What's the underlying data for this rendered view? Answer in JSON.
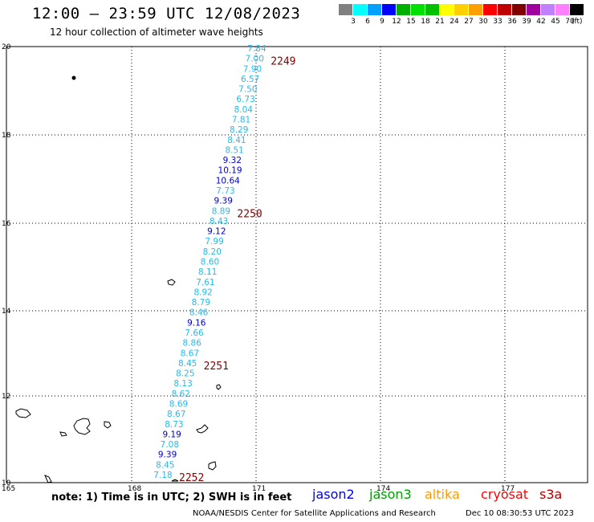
{
  "header": {
    "title": "12:00 – 23:59 UTC 12/08/2023",
    "subtitle": "12 hour collection of altimeter wave heights"
  },
  "colorbar": {
    "colors": [
      "#808080",
      "#00ffff",
      "#00a0ff",
      "#0000ff",
      "#00b000",
      "#00e000",
      "#00c000",
      "#ffff00",
      "#ffd000",
      "#ffa000",
      "#ff0000",
      "#c00000",
      "#800000",
      "#a000a0",
      "#c080ff",
      "#ff80ff",
      "#000000"
    ],
    "ticks": [
      "3",
      "6",
      "9",
      "12",
      "15",
      "18",
      "21",
      "24",
      "27",
      "30",
      "33",
      "36",
      "39",
      "42",
      "45",
      "70"
    ],
    "unit": "(ft)"
  },
  "map": {
    "lat_labels": [
      "20",
      "18",
      "16",
      "14",
      "12",
      "10"
    ],
    "lon_labels": [
      "165",
      "168",
      "171",
      "174",
      "177"
    ],
    "readings": [
      {
        "v": "7.84",
        "c": "#22bbee"
      },
      {
        "v": "7.00",
        "c": "#22bbee"
      },
      {
        "v": "7.90",
        "c": "#22bbee"
      },
      {
        "v": "6.57",
        "c": "#22bbee"
      },
      {
        "v": "7.50",
        "c": "#22bbee"
      },
      {
        "v": "6.73",
        "c": "#22bbee"
      },
      {
        "v": "8.04",
        "c": "#22bbee"
      },
      {
        "v": "7.81",
        "c": "#22bbee"
      },
      {
        "v": "8.29",
        "c": "#22bbee"
      },
      {
        "v": "8.41",
        "c": "#22bbee"
      },
      {
        "v": "8.51",
        "c": "#22bbee"
      },
      {
        "v": "9.32",
        "c": "#0000cc"
      },
      {
        "v": "10.19",
        "c": "#0000cc"
      },
      {
        "v": "10.64",
        "c": "#0000cc"
      },
      {
        "v": "7.73",
        "c": "#22bbee"
      },
      {
        "v": "9.39",
        "c": "#0000cc"
      },
      {
        "v": "8.89",
        "c": "#22bbee"
      },
      {
        "v": "8.43",
        "c": "#22bbee"
      },
      {
        "v": "9.12",
        "c": "#0000cc"
      },
      {
        "v": "7.99",
        "c": "#22bbee"
      },
      {
        "v": "8.20",
        "c": "#22bbee"
      },
      {
        "v": "8.60",
        "c": "#22bbee"
      },
      {
        "v": "8.11",
        "c": "#22bbee"
      },
      {
        "v": "7.61",
        "c": "#22bbee"
      },
      {
        "v": "8.92",
        "c": "#22bbee"
      },
      {
        "v": "8.79",
        "c": "#22bbee"
      },
      {
        "v": "8.46",
        "c": "#22bbee"
      },
      {
        "v": "9.16",
        "c": "#0000cc"
      },
      {
        "v": "7.66",
        "c": "#22bbee"
      },
      {
        "v": "8.86",
        "c": "#22bbee"
      },
      {
        "v": "8.67",
        "c": "#22bbee"
      },
      {
        "v": "8.45",
        "c": "#22bbee"
      },
      {
        "v": "8.25",
        "c": "#22bbee"
      },
      {
        "v": "8.13",
        "c": "#22bbee"
      },
      {
        "v": "8.62",
        "c": "#22bbee"
      },
      {
        "v": "8.69",
        "c": "#22bbee"
      },
      {
        "v": "8.67",
        "c": "#22bbee"
      },
      {
        "v": "8.73",
        "c": "#22bbee"
      },
      {
        "v": "9.19",
        "c": "#0000cc"
      },
      {
        "v": "7.08",
        "c": "#22bbee"
      },
      {
        "v": "9.39",
        "c": "#0000cc"
      },
      {
        "v": "8.45",
        "c": "#22bbee"
      },
      {
        "v": "7.18",
        "c": "#22bbee"
      }
    ],
    "time_marks": [
      {
        "label": "2249",
        "row": 1
      },
      {
        "label": "2250",
        "row": 16
      },
      {
        "label": "2251",
        "row": 31
      },
      {
        "label": "2252",
        "row": 42
      }
    ],
    "time_color": "#800000"
  },
  "notes": {
    "text": "note: 1) Time is in UTC; 2) SWH is in feet"
  },
  "legend": [
    {
      "name": "jason2",
      "color": "#0000ff"
    },
    {
      "name": "jason3",
      "color": "#00a000"
    },
    {
      "name": "altika",
      "color": "#ff9900"
    },
    {
      "name": "cryosat",
      "color": "#ff0000"
    },
    {
      "name": "s3a",
      "color": "#b00000"
    }
  ],
  "footer": {
    "credit": "NOAA/NESDIS Center for Satellite Applications and Research",
    "generated": "Dec 10 08:30:53 UTC 2023"
  }
}
